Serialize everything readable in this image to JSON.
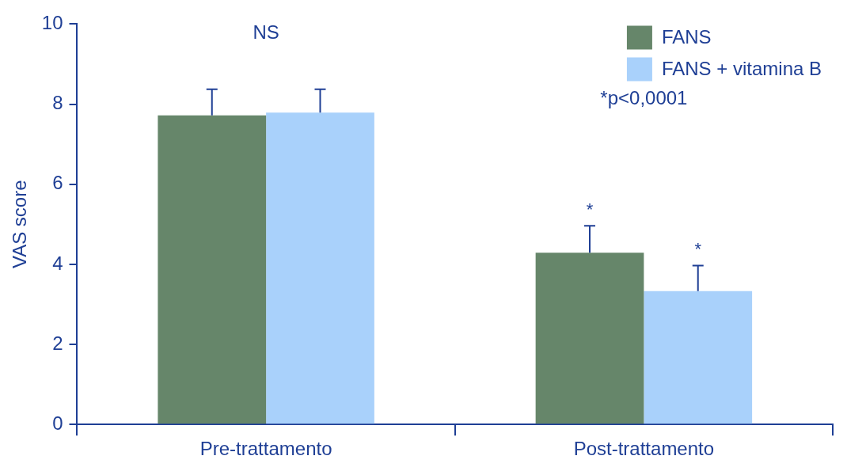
{
  "chart_data": {
    "type": "bar",
    "ylabel": "VAS score",
    "categories": [
      "Pre-trattamento",
      "Post-trattamento"
    ],
    "series": [
      {
        "name": "FANS",
        "color": "#66866a",
        "values": [
          7.72,
          4.29
        ],
        "errors": [
          [
            7.72,
            8.37
          ],
          [
            4.29,
            4.96
          ]
        ],
        "value_labels": [
          null,
          "*"
        ]
      },
      {
        "name": "FANS + vitamina B",
        "color": "#a9d1fb",
        "values": [
          7.79,
          3.33
        ],
        "errors": [
          [
            7.79,
            8.37
          ],
          [
            3.33,
            3.97
          ]
        ],
        "value_labels": [
          null,
          "*"
        ]
      }
    ],
    "ylim": [
      0,
      10
    ],
    "yticks": [
      0,
      2,
      4,
      6,
      8,
      10
    ],
    "grid": false,
    "legend": "top right",
    "annotations": [
      "NS",
      "*p<0,0001"
    ]
  }
}
